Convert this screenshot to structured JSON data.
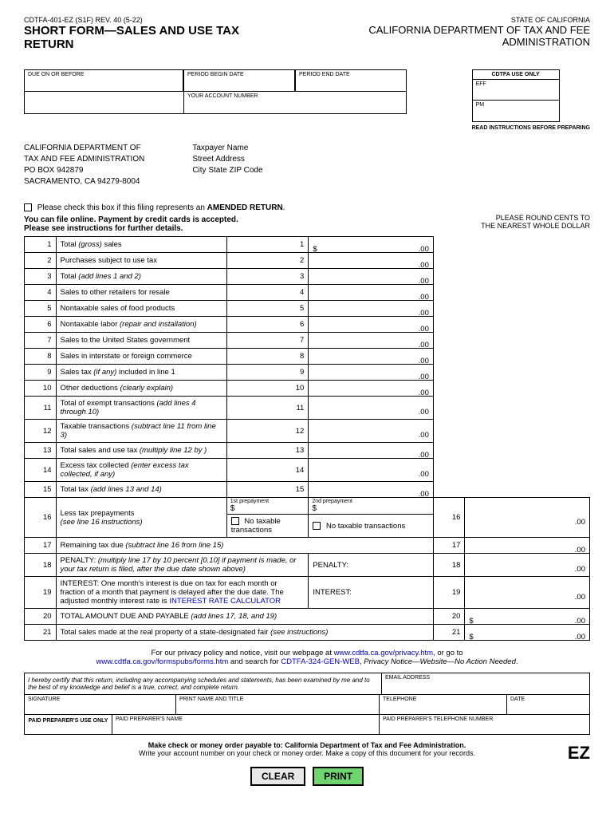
{
  "header": {
    "form_code": "CDTFA-401-EZ (S1F) REV. 40 (5-22)",
    "state": "STATE OF CALIFORNIA",
    "department": "CALIFORNIA DEPARTMENT OF TAX AND FEE ADMINISTRATION",
    "title": "SHORT FORM—SALES AND USE TAX RETURN"
  },
  "boxes": {
    "due": "DUE ON OR BEFORE",
    "begin": "PERIOD BEGIN DATE",
    "end": "PERIOD END DATE",
    "account": "YOUR ACCOUNT NUMBER",
    "cdtfa_header": "CDTFA USE ONLY",
    "eff": "EFF",
    "pm": "PM",
    "read_inst": "READ INSTRUCTIONS BEFORE PREPARING"
  },
  "address": {
    "line1": "CALIFORNIA DEPARTMENT OF",
    "line2": "TAX AND FEE ADMINISTRATION",
    "line3": "PO BOX 942879",
    "line4": "SACRAMENTO, CA 94279-8004",
    "tp_name": "Taxpayer Name",
    "tp_street": "Street Address",
    "tp_csz": "City State ZIP Code"
  },
  "amended": {
    "text": "Please check this box if this filing represents an ",
    "bold": "AMENDED RETURN",
    "online1": "You can file online. Payment by credit cards is accepted.",
    "online2": "Please see instructions for further details.",
    "round1": "PLEASE ROUND CENTS TO",
    "round2": "THE NEAREST WHOLE DOLLAR"
  },
  "lines": [
    {
      "n": "1",
      "desc": "Total ",
      "italic": "(gross)",
      "desc2": " sales",
      "n2": "1",
      "dollar": "$"
    },
    {
      "n": "2",
      "desc": "Purchases subject to use tax",
      "n2": "2"
    },
    {
      "n": "3",
      "desc": "Total ",
      "italic": "(add lines 1 and 2)",
      "n2": "3"
    },
    {
      "n": "4",
      "desc": "Sales to other retailers for resale",
      "n2": "4"
    },
    {
      "n": "5",
      "desc": "Nontaxable sales of food products",
      "n2": "5"
    },
    {
      "n": "6",
      "desc": "Nontaxable labor ",
      "italic": "(repair and installation)",
      "n2": "6"
    },
    {
      "n": "7",
      "desc": "Sales to the United States government",
      "n2": "7"
    },
    {
      "n": "8",
      "desc": "Sales in interstate or foreign commerce",
      "n2": "8"
    },
    {
      "n": "9",
      "desc": "Sales tax ",
      "italic": "(if any)",
      "desc2": " included in line 1",
      "n2": "9"
    },
    {
      "n": "10",
      "desc": "Other deductions ",
      "italic": "(clearly explain)",
      "n2": "10"
    },
    {
      "n": "11",
      "desc": "Total of exempt transactions ",
      "italic": "(add lines 4 through 10)",
      "n2": "11"
    },
    {
      "n": "12",
      "desc": "Taxable transactions ",
      "italic": "(subtract line 11 from line 3)",
      "n2": "12"
    },
    {
      "n": "13",
      "desc": "Total sales and use tax ",
      "italic": "(multiply line 12 by                              )",
      "n2": "13"
    },
    {
      "n": "14",
      "desc": "Excess tax collected ",
      "italic": "(enter excess tax collected, if any)",
      "n2": "14"
    },
    {
      "n": "15",
      "desc": "Total tax ",
      "italic": "(add lines 13 and 14)",
      "n2": "15"
    }
  ],
  "line16": {
    "n": "16",
    "desc": "Less tax prepayments",
    "desc2": "(see line 16 instructions)",
    "pre1": "1st prepayment",
    "pre2": "2nd prepayment",
    "dollar": "$",
    "notax": "No taxable transactions",
    "n2": "16"
  },
  "line17": {
    "n": "17",
    "desc": "Remaining tax due ",
    "italic": "(subtract line 16 from line 15)",
    "n2": "17"
  },
  "line18": {
    "n": "18",
    "desc": "PENALTY: ",
    "italic": "(multiply line 17 by 10 percent [0.10] if payment is made, or your tax return is filed, after the due date shown above)",
    "label": "PENALTY:",
    "n2": "18"
  },
  "line19": {
    "n": "19",
    "desc": "INTEREST: One month's interest is due on tax for each month or fraction of a month that payment is delayed after the due date. The adjusted monthly interest rate is",
    "link": "INTEREST RATE CALCULATOR",
    "label": "INTEREST:",
    "n2": "19"
  },
  "line20": {
    "n": "20",
    "desc": "TOTAL AMOUNT DUE AND PAYABLE ",
    "italic": "(add lines 17, 18, and 19)",
    "n2": "20",
    "dollar": "$"
  },
  "line21": {
    "n": "21",
    "desc": "Total sales made at the real property of a state-designated fair ",
    "italic": "(see instructions)",
    "n2": "21",
    "dollar": "$"
  },
  "zero": ".00",
  "privacy": {
    "text1": "For our privacy policy and notice, visit our webpage at ",
    "link1": "www.cdtfa.ca.gov/privacy.htm",
    "text2": ", or go to",
    "link2": "www.cdtfa.ca.gov/formspubs/forms.htm",
    "text3": " and search for ",
    "bold": "CDTFA-324-GEN-WEB",
    "text4": ", ",
    "italic": "Privacy Notice—Website—No Action Needed",
    "text5": "."
  },
  "cert": {
    "text": "I hereby certify that this return, including any accompanying schedules and statements, has been examined by me and to the best of my knowledge and belief is a true, correct, and complete return.",
    "email": "EMAIL ADDRESS",
    "signature": "SIGNATURE",
    "printname": "PRINT NAME AND TITLE",
    "telephone": "TELEPHONE",
    "date": "DATE",
    "paid_prep": "PAID PREPARER'S USE ONLY",
    "prep_name": "PAID PREPARER'S NAME",
    "prep_tel": "PAID PREPARER'S TELEPHONE NUMBER"
  },
  "footer": {
    "bold": "Make check or money order payable to: California Department of Tax and Fee Administration.",
    "text": "Write your account number on your check or money order. Make a copy of this document for your records.",
    "ez": "EZ"
  },
  "buttons": {
    "clear": "CLEAR",
    "print": "PRINT"
  }
}
